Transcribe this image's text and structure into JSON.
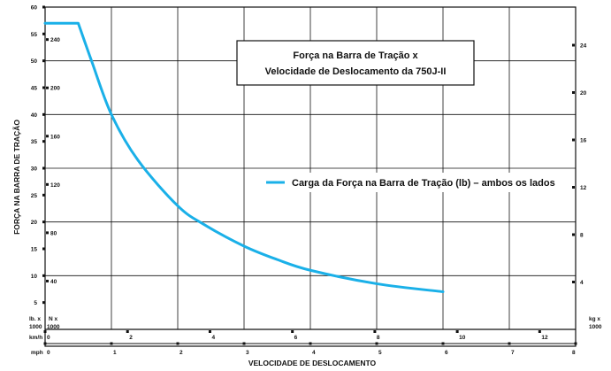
{
  "chart_data": {
    "type": "line",
    "title_lines": [
      "Força na Barra de Tração x",
      "Velocidade de Deslocamento da 750J-II"
    ],
    "xlabel": "VELOCIDADE DE DESLOCAMENTO",
    "ylabel": "FORÇA NA BARRA DE TRAÇÃO",
    "grid": true,
    "legend_position": "right-middle",
    "line_color": "#1ab0e8",
    "series": [
      {
        "name": "Carga da Força na Barra de Tração (lb) – ambos os lados",
        "x_unit": "mph",
        "y_unit": "lb x 1000",
        "x": [
          0,
          0.5,
          0.7,
          1.0,
          1.4,
          2.0,
          2.4,
          3.0,
          3.5,
          4.0,
          5.0,
          6.0
        ],
        "y": [
          57,
          57,
          50,
          40,
          31.5,
          23,
          19.5,
          15.5,
          13,
          11,
          8.5,
          7
        ]
      }
    ],
    "left_axis_lb": {
      "unit_label": "lb. x 1000",
      "ticks": [
        "60",
        "55",
        "50",
        "45",
        "40",
        "35",
        "30",
        "25",
        "20",
        "15",
        "10",
        "5"
      ],
      "range": [
        0,
        60
      ]
    },
    "left_axis_n": {
      "unit_label": "N x 1000",
      "ticks": [
        "240",
        "200",
        "160",
        "120",
        "80",
        "40"
      ]
    },
    "right_axis_kg": {
      "unit_label": "kg x 1000",
      "ticks": [
        "24",
        "20",
        "16",
        "12",
        "8",
        "4"
      ]
    },
    "bottom_axis_kmh": {
      "unit_label": "km/h",
      "ticks": [
        "0",
        "2",
        "4",
        "6",
        "8",
        "10",
        "12"
      ]
    },
    "bottom_axis_mph": {
      "unit_label": "mph",
      "ticks": [
        "0",
        "1",
        "2",
        "3",
        "4",
        "5",
        "6",
        "7",
        "8"
      ],
      "range": [
        0,
        8
      ]
    }
  }
}
